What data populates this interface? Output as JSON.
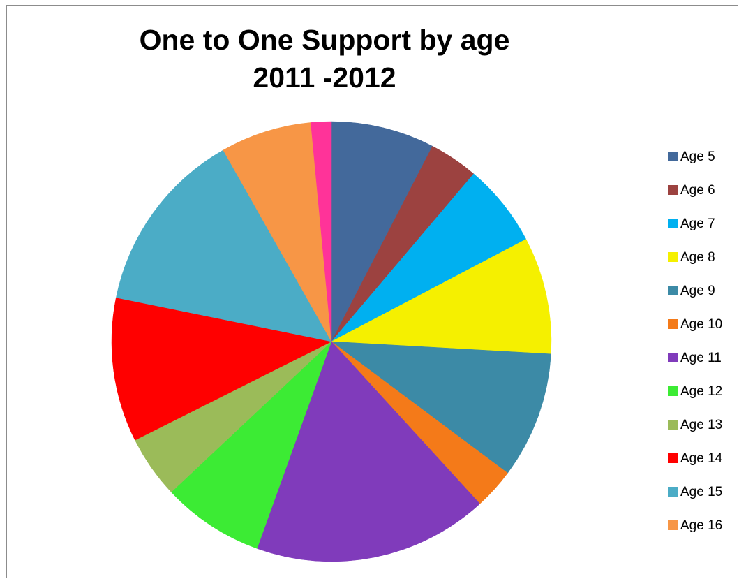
{
  "chart_data": {
    "type": "pie",
    "title": [
      "One to One Support by age",
      "2011 -2012"
    ],
    "legend_position": "right",
    "slices": [
      {
        "label": "Age 5",
        "value": 7.6,
        "color": "#43699B"
      },
      {
        "label": "Age 6",
        "value": 3.6,
        "color": "#9C4240"
      },
      {
        "label": "Age 7",
        "value": 6.1,
        "color": "#00B0F0"
      },
      {
        "label": "Age 8",
        "value": 8.6,
        "color": "#F5F000"
      },
      {
        "label": "Age 9",
        "value": 9.3,
        "color": "#3C8AA6"
      },
      {
        "label": "Age 10",
        "value": 3.0,
        "color": "#F47A19"
      },
      {
        "label": "Age 11",
        "value": 17.3,
        "color": "#803BBB"
      },
      {
        "label": "Age 12",
        "value": 7.5,
        "color": "#3CEB34"
      },
      {
        "label": "Age 13",
        "value": 4.6,
        "color": "#9BBB59"
      },
      {
        "label": "Age 14",
        "value": 10.6,
        "color": "#FF0000"
      },
      {
        "label": "Age 15",
        "value": 13.6,
        "color": "#4BACC6"
      },
      {
        "label": "Age 16",
        "value": 6.7,
        "color": "#F79646"
      },
      {
        "label": "",
        "value": 1.5,
        "color": "#FF3399"
      }
    ]
  }
}
